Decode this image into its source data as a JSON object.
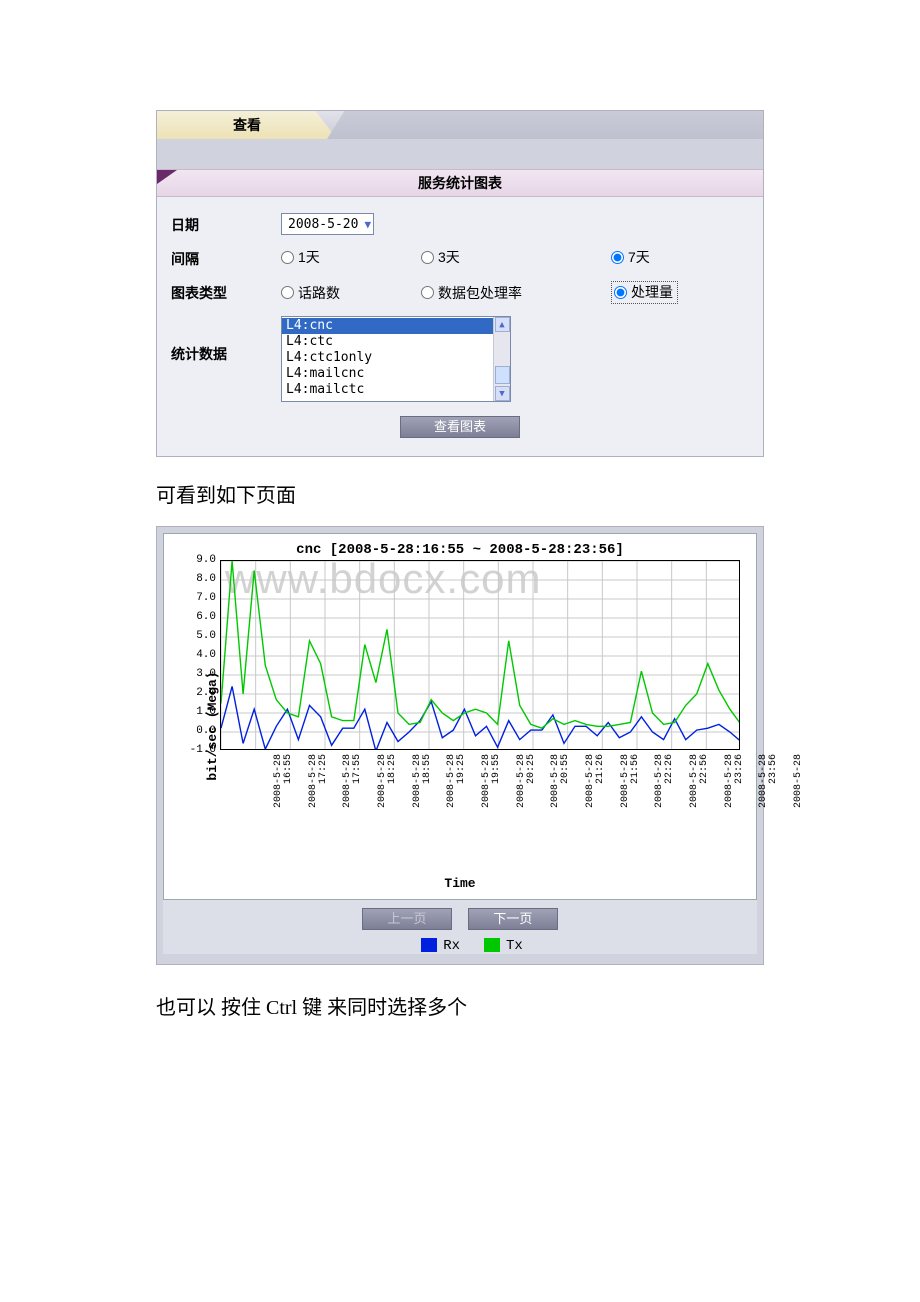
{
  "tabs": {
    "active": "查看"
  },
  "section_title": "服务统计图表",
  "form": {
    "date_label": "日期",
    "date_value": "2008-5-20",
    "interval_label": "间隔",
    "intervals": [
      {
        "label": "1天",
        "checked": false
      },
      {
        "label": "3天",
        "checked": false
      },
      {
        "label": "7天",
        "checked": true
      }
    ],
    "chart_type_label": "图表类型",
    "chart_types": [
      {
        "label": "话路数",
        "checked": false
      },
      {
        "label": "数据包处理率",
        "checked": false
      },
      {
        "label": "处理量",
        "checked": true
      }
    ],
    "data_label": "统计数据",
    "data_items": [
      {
        "label": "L4:cnc",
        "selected": true
      },
      {
        "label": "L4:ctc",
        "selected": false
      },
      {
        "label": "L4:ctc1only",
        "selected": false
      },
      {
        "label": "L4:mailcnc",
        "selected": false
      },
      {
        "label": "L4:mailctc",
        "selected": false
      }
    ],
    "submit": "查看图表"
  },
  "text_after_panel1": "可看到如下页面",
  "chart": {
    "title": "cnc [2008-5-28:16:55 ~ 2008-5-28:23:56]",
    "y_label": "bit/sec (Mega)",
    "x_label": "Time",
    "y_min": -1.0,
    "y_max": 9.0,
    "y_ticks": [
      -1.0,
      0.0,
      1.0,
      2.0,
      3.0,
      4.0,
      5.0,
      6.0,
      7.0,
      8.0,
      9.0
    ],
    "x_ticks": [
      "2008-5-28\n16:55",
      "2008-5-28\n17:25",
      "2008-5-28\n17:55",
      "2008-5-28\n18:25",
      "2008-5-28\n18:55",
      "2008-5-28\n19:25",
      "2008-5-28\n19:55",
      "2008-5-28\n20:25",
      "2008-5-28\n20:55",
      "2008-5-28\n21:26",
      "2008-5-28\n21:56",
      "2008-5-28\n22:26",
      "2008-5-28\n22:56",
      "2008-5-28\n23:26",
      "2008-5-28\n23:56",
      "2008-5-28\n"
    ],
    "series": [
      {
        "name": "Rx",
        "color": "#0020e0",
        "values": [
          0.2,
          2.4,
          -0.6,
          1.2,
          -0.9,
          0.3,
          1.2,
          -0.4,
          1.4,
          0.8,
          -0.7,
          0.2,
          0.2,
          1.2,
          -1.0,
          0.5,
          -0.5,
          0.0,
          0.6,
          1.6,
          -0.3,
          0.1,
          1.2,
          -0.2,
          0.3,
          -0.8,
          0.6,
          -0.4,
          0.1,
          0.1,
          0.9,
          -0.6,
          0.3,
          0.3,
          -0.2,
          0.5,
          -0.3,
          0.0,
          0.8,
          0.0,
          -0.4,
          0.7,
          -0.4,
          0.1,
          0.2,
          0.4,
          0.0,
          -0.5
        ]
      },
      {
        "name": "Tx",
        "color": "#00c800",
        "values": [
          1.5,
          9.0,
          2.0,
          8.5,
          3.5,
          1.7,
          1.0,
          0.8,
          4.8,
          3.6,
          0.8,
          0.6,
          0.6,
          4.6,
          2.6,
          5.4,
          1.0,
          0.4,
          0.5,
          1.7,
          1.0,
          0.6,
          1.0,
          1.2,
          1.0,
          0.4,
          4.8,
          1.4,
          0.4,
          0.2,
          0.7,
          0.4,
          0.6,
          0.4,
          0.3,
          0.3,
          0.4,
          0.5,
          3.2,
          1.0,
          0.4,
          0.5,
          1.4,
          2.0,
          3.6,
          2.2,
          1.2,
          0.4
        ]
      }
    ],
    "plot_bg": "#ffffff",
    "grid_color": "#c8c8c8",
    "watermark": "www.bdocx.com",
    "prev": "上一页",
    "next": "下一页",
    "legend": [
      {
        "label": "Rx",
        "color": "#0020e0"
      },
      {
        "label": "Tx",
        "color": "#00c800"
      }
    ]
  },
  "text_after_panel2": "也可以 按住 Ctrl 键 来同时选择多个"
}
